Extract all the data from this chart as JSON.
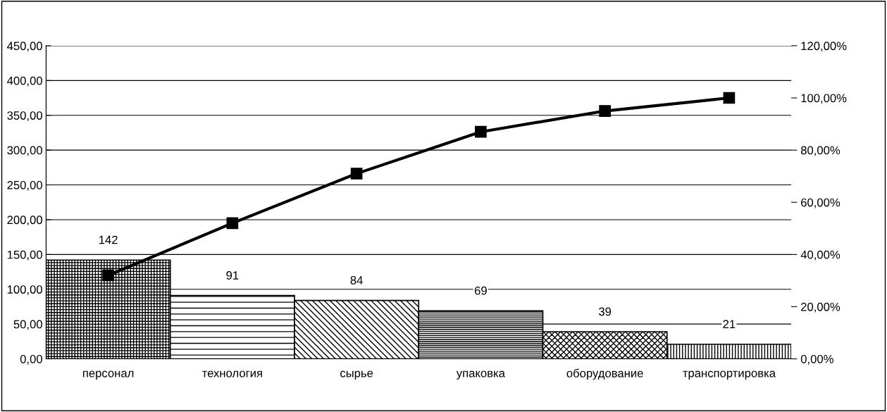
{
  "chart_data": {
    "type": "bar",
    "categories": [
      "персонал",
      "технология",
      "сырье",
      "упаковка",
      "оборудование",
      "транспортировка"
    ],
    "series": [
      {
        "color": "#000000",
        "values": [
          142,
          91,
          84,
          69,
          39,
          21
        ],
        "value_labels": [
          "142",
          "91",
          "84",
          "69",
          "39",
          "21"
        ]
      },
      {
        "type": "line",
        "axis": "y2",
        "color": "#000000",
        "values": [
          32,
          52,
          71,
          87,
          95,
          100
        ]
      }
    ],
    "ylim": [
      0,
      450
    ],
    "yticks": [
      {
        "value": 0,
        "label": "0,00"
      },
      {
        "value": 50,
        "label": "50,00"
      },
      {
        "value": 100,
        "label": "100,00"
      },
      {
        "value": 150,
        "label": "150,00"
      },
      {
        "value": 200,
        "label": "200,00"
      },
      {
        "value": 250,
        "label": "250,00"
      },
      {
        "value": 300,
        "label": "300,00"
      },
      {
        "value": 350,
        "label": "350,00"
      },
      {
        "value": 400,
        "label": "400,00"
      },
      {
        "value": 450,
        "label": "450,00"
      }
    ],
    "y2lim": [
      0,
      120
    ],
    "y2ticks": [
      {
        "value": 0,
        "label": "0,00%"
      },
      {
        "value": 20,
        "label": "20,00%"
      },
      {
        "value": 40,
        "label": "40,00%"
      },
      {
        "value": 60,
        "label": "60,00%"
      },
      {
        "value": 80,
        "label": "80,00%"
      },
      {
        "value": 100,
        "label": "100,00%"
      },
      {
        "value": 120,
        "label": "120,00%"
      }
    ],
    "grid": "y",
    "marker": "square",
    "line_style": "solid",
    "legend": false
  }
}
